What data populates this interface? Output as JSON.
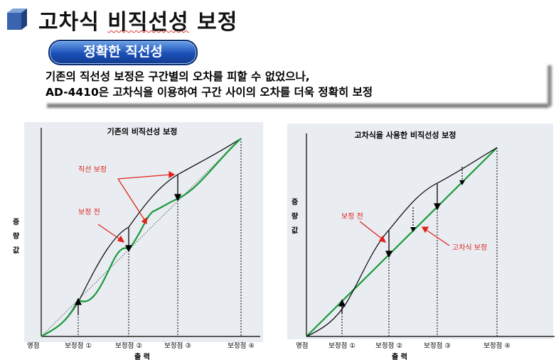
{
  "title": {
    "pre": "고차식 ",
    "squiggle": "비직선성",
    "post": " 보정"
  },
  "pill_label": "정확한 직선성",
  "description": {
    "line1": "기존의 직선성 보정은 구간별의 오차를 피할 수 없었으나,",
    "line2": "AD-4410은 고차식을 이용하여 구간 사이의 오차를 더욱 정확히 보정"
  },
  "left_chart": {
    "title": "기존의 비직선성 보정",
    "ylabel": [
      "중",
      "량",
      "값"
    ],
    "xlabel": "출  력",
    "origin": "영점",
    "ticks": [
      "보정점 ①",
      "보정점 ②",
      "보정점 ③",
      "보정점 ④"
    ],
    "ann_linear": "직선 보정",
    "ann_before": "보정 전"
  },
  "right_chart": {
    "title": "고차식을 사용한 비직선성 보정",
    "ylabel": [
      "중",
      "량",
      "값"
    ],
    "xlabel": "출  력",
    "origin": "영점",
    "ticks": [
      "보정점 ①",
      "보정점 ②",
      "보정점 ③",
      "보정점 ④"
    ],
    "ann_before": "보정 전",
    "ann_poly": "고차식 보정"
  },
  "colors": {
    "green": "#1a9a3c",
    "red": "#e0231b",
    "pill": "#1b4fb8"
  }
}
